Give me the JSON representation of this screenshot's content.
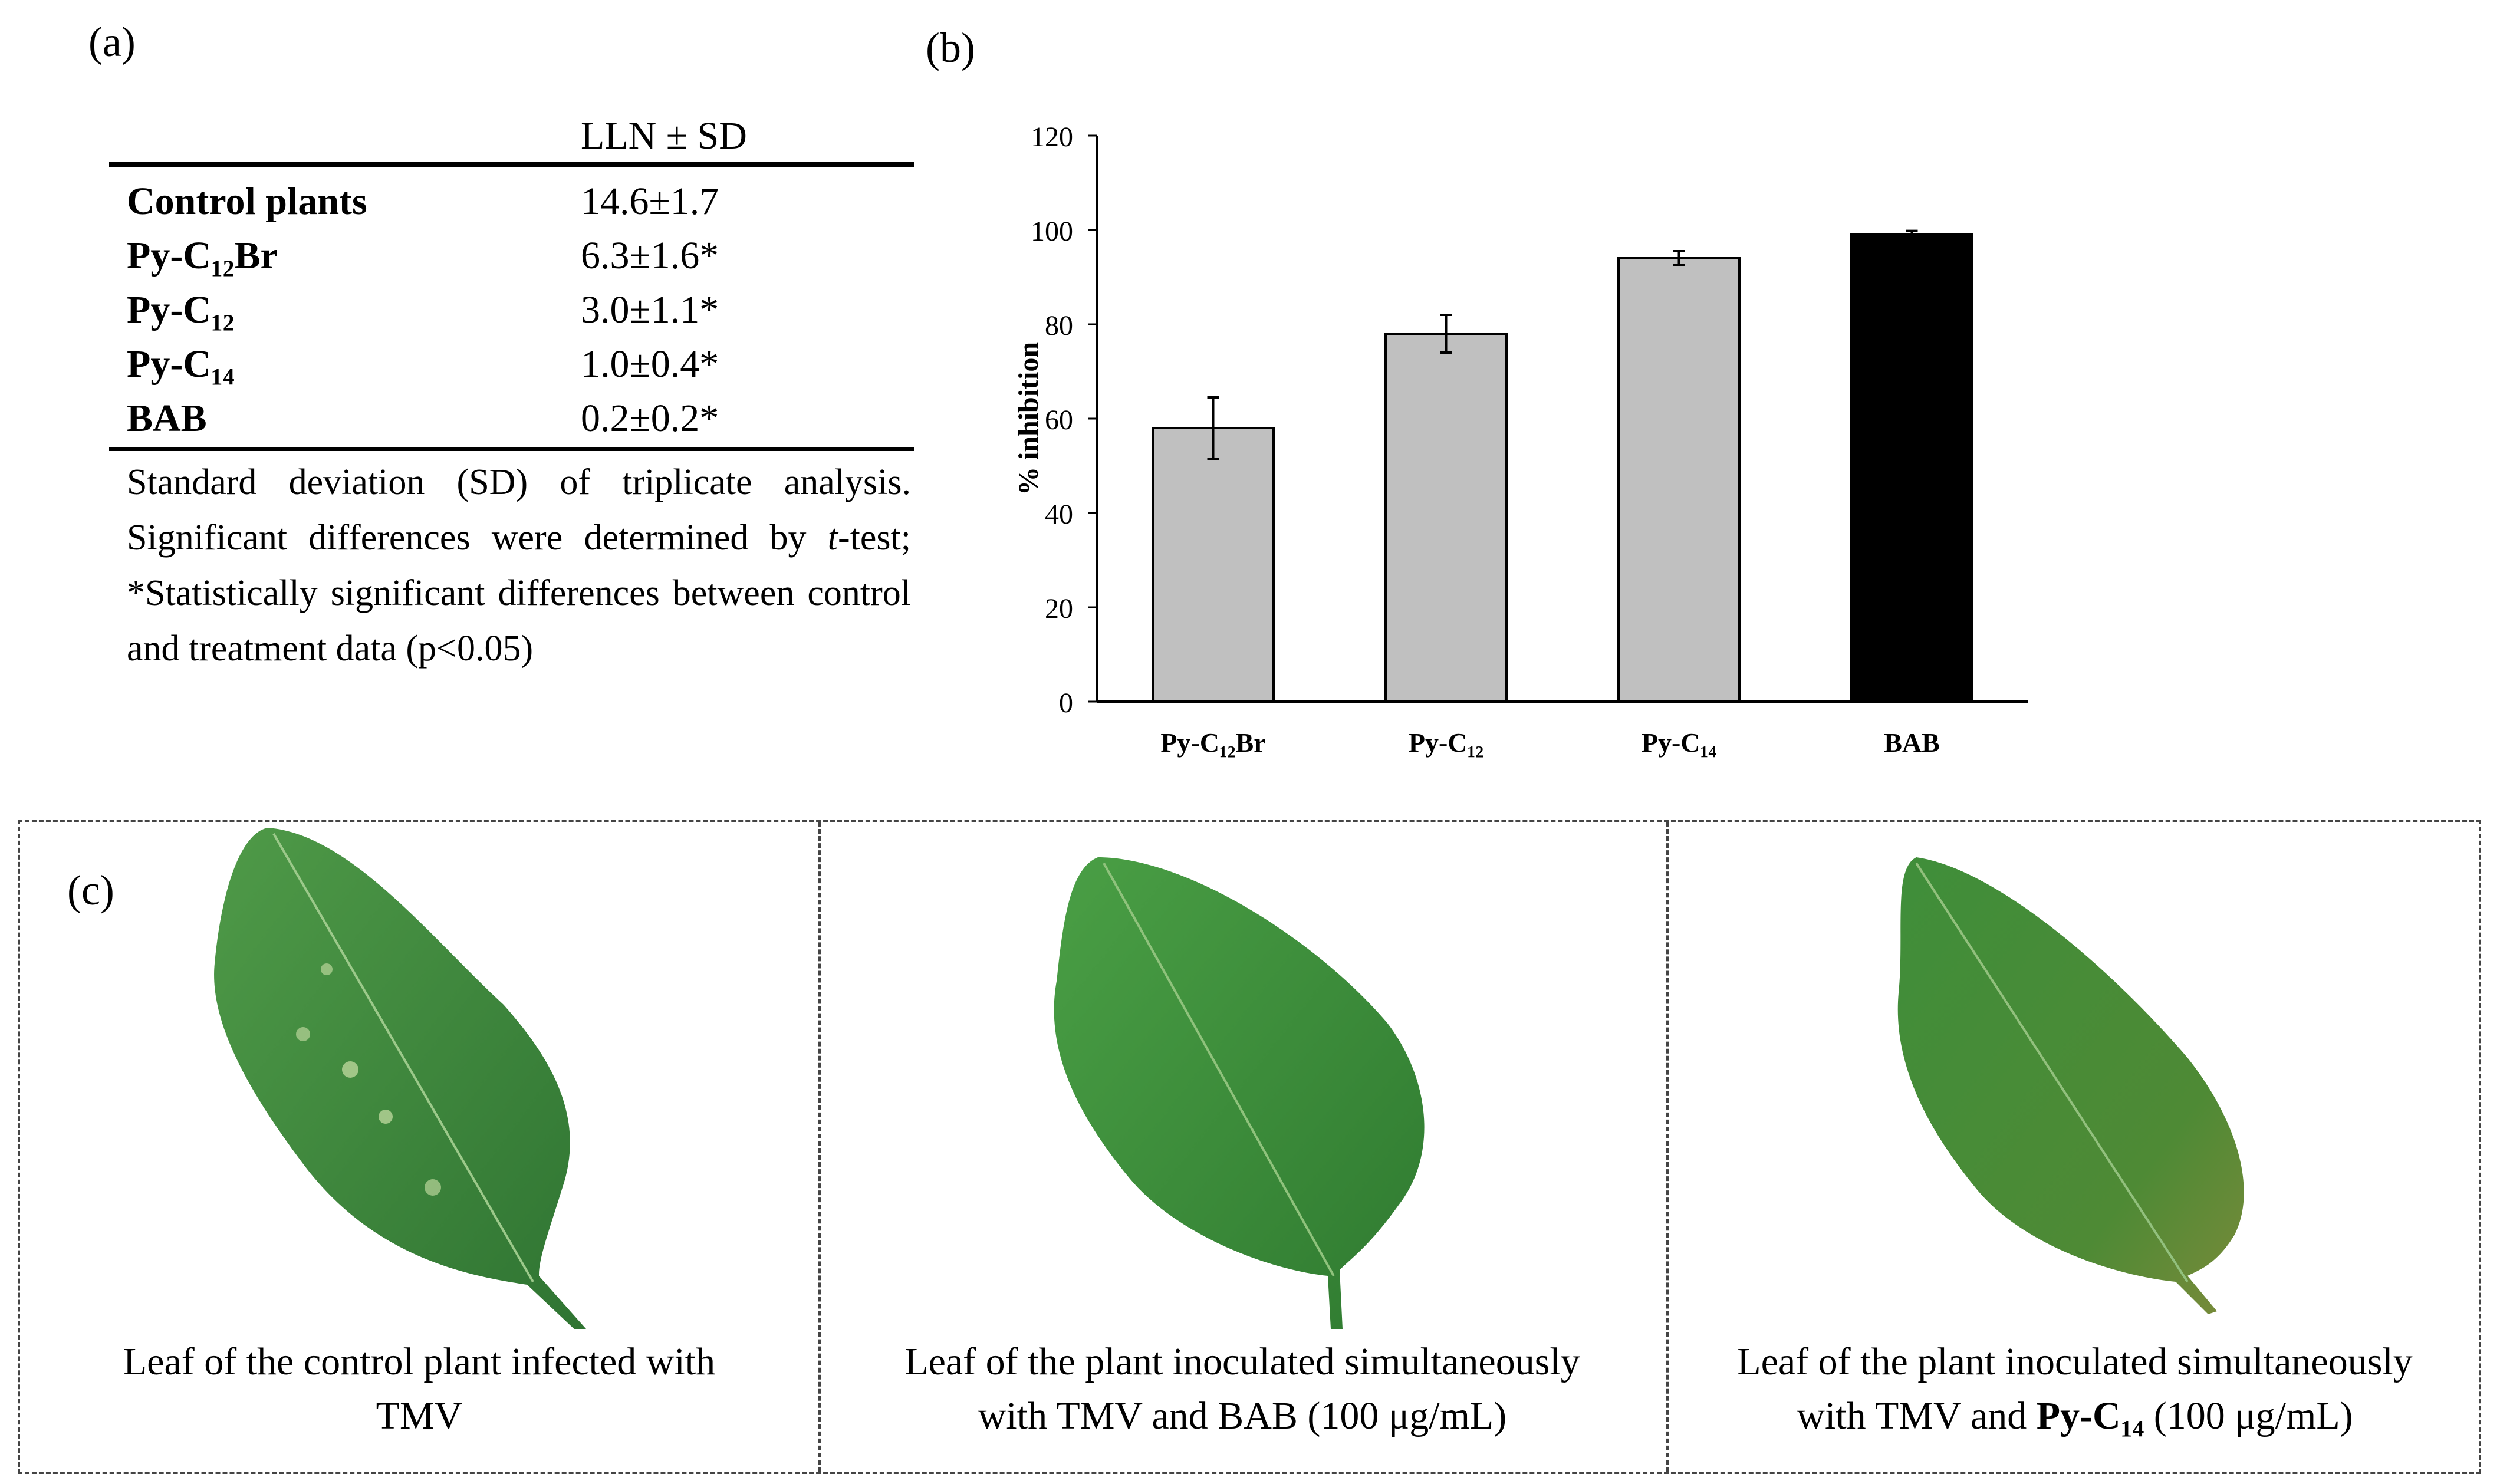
{
  "panels": {
    "a_label": "(a)",
    "b_label": "(b)",
    "c_label": "(c)"
  },
  "table": {
    "column_header": "LLN ± SD",
    "rows": [
      {
        "name": "Control plants",
        "value": "14.6±1.7"
      },
      {
        "name": "Py-C₁₂Br",
        "value": "6.3±1.6*"
      },
      {
        "name": "Py-C₁₂",
        "value": "3.0±1.1*"
      },
      {
        "name": "Py-C₁₄",
        "value": "1.0±0.4*"
      },
      {
        "name": "BAB",
        "value": "0.2±0.2*"
      }
    ],
    "note_part1": "Standard deviation (SD) of triplicate analysis. Significant differences were determined by ",
    "note_italic": "t",
    "note_part2": "-test; *Statistically significant differences between control and treatment data (p<0.05)"
  },
  "chart_data": {
    "type": "bar",
    "categories": [
      "Py-C₁₂Br",
      "Py-C₁₂",
      "Py-C₁₄",
      "BAB"
    ],
    "values": [
      58,
      78,
      94,
      99
    ],
    "errors": [
      6.5,
      4,
      1.5,
      0.8
    ],
    "bar_colors": [
      "#c0c0c0",
      "#c0c0c0",
      "#c0c0c0",
      "#000000"
    ],
    "ylabel": "% inhibition",
    "xlabel": "",
    "ylim": [
      0,
      120
    ],
    "yticks": [
      0,
      20,
      40,
      60,
      80,
      100,
      120
    ],
    "grid": false
  },
  "leaves": [
    {
      "caption_line1": "Leaf of the control plant infected with",
      "caption_line2": "TMV",
      "caption_bold": "",
      "caption_tail": ""
    },
    {
      "caption_line1": "Leaf of the plant inoculated simultaneously",
      "caption_line2": "with TMV and BAB (100 μg/mL)",
      "caption_bold": "",
      "caption_tail": ""
    },
    {
      "caption_line1": "Leaf of the plant inoculated simultaneously",
      "caption_line2": "with TMV and ",
      "caption_bold": "Py-C₁₄",
      "caption_tail": " (100 μg/mL)"
    }
  ],
  "colors": {
    "leaf_green": "#3f8a3c",
    "leaf_dark": "#2b6a2a",
    "leaf_light": "#6aaa4f"
  }
}
